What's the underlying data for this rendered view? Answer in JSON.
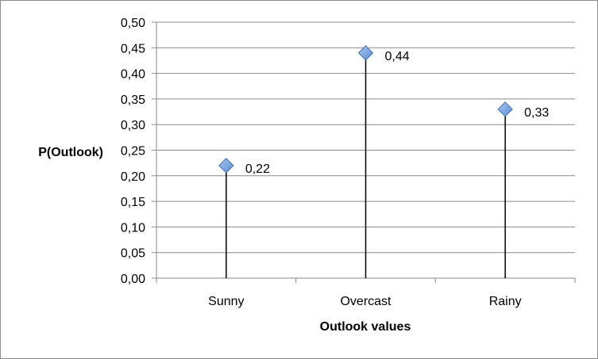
{
  "chart_data": {
    "type": "scatter",
    "categories": [
      "Sunny",
      "Overcast",
      "Rainy"
    ],
    "values": [
      0.22,
      0.44,
      0.33
    ],
    "data_labels": [
      "0,22",
      "0,44",
      "0,33"
    ],
    "xlabel": "Outlook values",
    "ylabel": "P(Outlook)",
    "ylim": [
      0,
      0.5
    ],
    "y_ticks": [
      0.0,
      0.05,
      0.1,
      0.15,
      0.2,
      0.25,
      0.3,
      0.35,
      0.4,
      0.45,
      0.5
    ],
    "y_tick_labels": [
      "0,00",
      "0,05",
      "0,10",
      "0,15",
      "0,20",
      "0,25",
      "0,30",
      "0,35",
      "0,40",
      "0,45",
      "0,50"
    ],
    "grid": true,
    "drop_lines": true,
    "marker": "diamond",
    "colors": {
      "marker": "#5b8fd6",
      "marker_light": "#a9c8ef",
      "marker_edge": "#3c6fb8",
      "gridline": "#8a8a8a",
      "axis": "#8a8a8a",
      "drop_line": "#000000"
    }
  }
}
